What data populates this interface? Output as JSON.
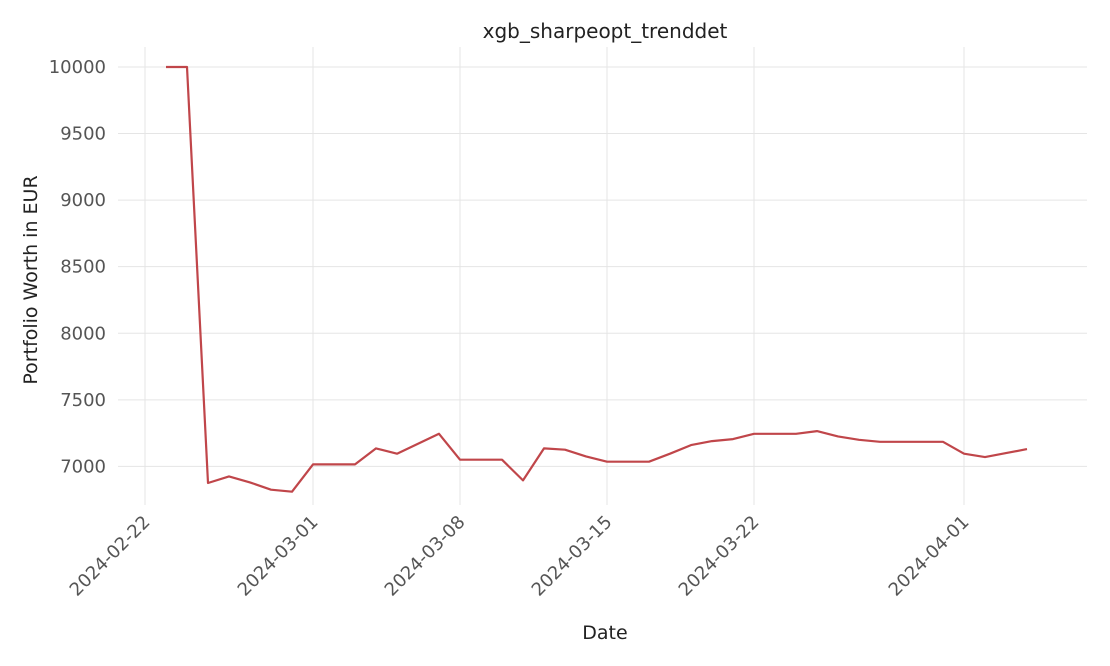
{
  "chart_data": {
    "type": "line",
    "title": "xgb_sharpeopt_trenddet",
    "xlabel": "Date",
    "ylabel": "Portfolio Worth in EUR",
    "xlim": [
      "2024-02-22",
      "2024-04-06"
    ],
    "ylim": [
      6710,
      10150
    ],
    "x_ticks": [
      "2024-02-22",
      "2024-03-01",
      "2024-03-08",
      "2024-03-15",
      "2024-03-22",
      "2024-04-01"
    ],
    "y_ticks": [
      7000,
      7500,
      8000,
      8500,
      9000,
      9500,
      10000
    ],
    "grid": true,
    "color": "#c0464a",
    "series": [
      {
        "x": [
          "2024-02-23",
          "2024-02-24",
          "2024-02-25",
          "2024-02-26",
          "2024-02-27",
          "2024-02-28",
          "2024-02-29",
          "2024-03-01",
          "2024-03-02",
          "2024-03-03",
          "2024-03-04",
          "2024-03-05",
          "2024-03-06",
          "2024-03-07",
          "2024-03-08",
          "2024-03-09",
          "2024-03-10",
          "2024-03-11",
          "2024-03-12",
          "2024-03-13",
          "2024-03-14",
          "2024-03-15",
          "2024-03-16",
          "2024-03-17",
          "2024-03-18",
          "2024-03-19",
          "2024-03-20",
          "2024-03-21",
          "2024-03-22",
          "2024-03-23",
          "2024-03-24",
          "2024-03-25",
          "2024-03-26",
          "2024-03-27",
          "2024-03-28",
          "2024-03-29",
          "2024-03-30",
          "2024-03-31",
          "2024-04-01",
          "2024-04-02",
          "2024-04-03",
          "2024-04-04"
        ],
        "y": [
          10000,
          10000,
          6875,
          6925,
          6880,
          6825,
          6810,
          7015,
          7015,
          7015,
          7135,
          7095,
          7170,
          7245,
          7050,
          7050,
          7050,
          6895,
          7135,
          7125,
          7075,
          7035,
          7035,
          7035,
          7095,
          7160,
          7190,
          7205,
          7245,
          7245,
          7245,
          7265,
          7225,
          7200,
          7185,
          7185,
          7185,
          7185,
          7095,
          7070,
          7100,
          7130
        ]
      }
    ]
  }
}
